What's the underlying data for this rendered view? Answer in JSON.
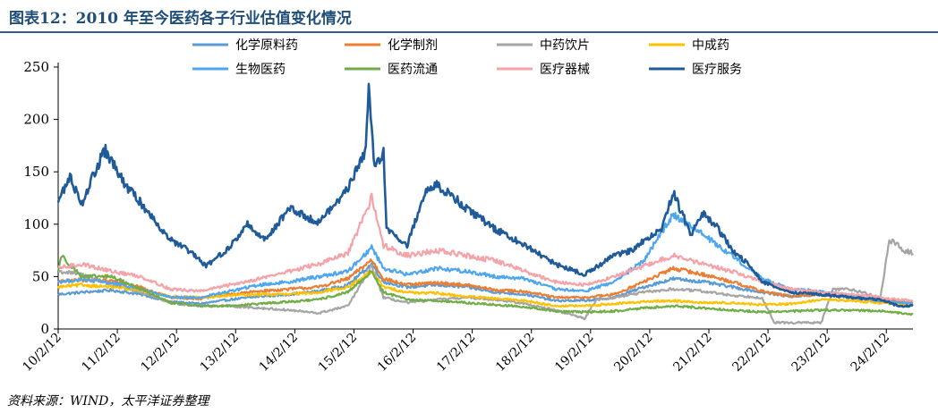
{
  "title": "图表12：2010 年至今医药各子行业估值变化情况",
  "source": "资料来源：WIND，太平洋证券整理",
  "chart_data": {
    "type": "line",
    "title": "图表12：2010 年至今医药各子行业估值变化情况",
    "xlabel": "",
    "ylabel": "",
    "ylim": [
      0,
      250
    ],
    "yticks": [
      0,
      50,
      100,
      150,
      200,
      250
    ],
    "x_tick_labels": [
      "10/2/12",
      "11/2/12",
      "12/2/12",
      "13/2/12",
      "14/2/12",
      "15/2/12",
      "16/2/12",
      "17/2/12",
      "18/2/12",
      "19/2/12",
      "20/2/12",
      "21/2/12",
      "22/2/12",
      "23/2/12",
      "24/2/12"
    ],
    "x_start": 2010.1,
    "x_end": 2024.55,
    "grid": false,
    "legend_position": "top",
    "series": [
      {
        "name": "化学原料药",
        "color": "#5b9bd5",
        "points": [
          [
            2010.1,
            33
          ],
          [
            2010.5,
            35
          ],
          [
            2011.0,
            37
          ],
          [
            2011.5,
            33
          ],
          [
            2012.0,
            26
          ],
          [
            2012.5,
            24
          ],
          [
            2013.0,
            28
          ],
          [
            2013.5,
            31
          ],
          [
            2014.0,
            33
          ],
          [
            2014.5,
            36
          ],
          [
            2015.0,
            42
          ],
          [
            2015.4,
            62
          ],
          [
            2015.6,
            45
          ],
          [
            2016.0,
            40
          ],
          [
            2016.5,
            42
          ],
          [
            2017.0,
            40
          ],
          [
            2017.5,
            35
          ],
          [
            2018.0,
            33
          ],
          [
            2018.5,
            27
          ],
          [
            2019.0,
            27
          ],
          [
            2019.5,
            30
          ],
          [
            2020.0,
            40
          ],
          [
            2020.5,
            48
          ],
          [
            2021.0,
            45
          ],
          [
            2021.5,
            40
          ],
          [
            2022.0,
            35
          ],
          [
            2022.5,
            31
          ],
          [
            2023.0,
            33
          ],
          [
            2023.5,
            30
          ],
          [
            2024.0,
            26
          ],
          [
            2024.55,
            23
          ]
        ]
      },
      {
        "name": "化学制剂",
        "color": "#ed7d31",
        "points": [
          [
            2010.1,
            45
          ],
          [
            2010.5,
            47
          ],
          [
            2011.0,
            46
          ],
          [
            2011.5,
            40
          ],
          [
            2012.0,
            30
          ],
          [
            2012.5,
            29
          ],
          [
            2013.0,
            33
          ],
          [
            2013.5,
            36
          ],
          [
            2014.0,
            38
          ],
          [
            2014.5,
            40
          ],
          [
            2015.0,
            48
          ],
          [
            2015.4,
            66
          ],
          [
            2015.6,
            48
          ],
          [
            2016.0,
            42
          ],
          [
            2016.5,
            44
          ],
          [
            2017.0,
            42
          ],
          [
            2017.5,
            37
          ],
          [
            2018.0,
            36
          ],
          [
            2018.5,
            30
          ],
          [
            2019.0,
            30
          ],
          [
            2019.5,
            33
          ],
          [
            2020.0,
            45
          ],
          [
            2020.5,
            58
          ],
          [
            2021.0,
            52
          ],
          [
            2021.5,
            45
          ],
          [
            2022.0,
            36
          ],
          [
            2022.5,
            31
          ],
          [
            2023.0,
            33
          ],
          [
            2023.5,
            31
          ],
          [
            2024.0,
            28
          ],
          [
            2024.55,
            25
          ]
        ]
      },
      {
        "name": "中药饮片",
        "color": "#a5a5a5",
        "points": [
          [
            2010.1,
            55
          ],
          [
            2010.5,
            52
          ],
          [
            2011.0,
            42
          ],
          [
            2011.5,
            35
          ],
          [
            2012.0,
            25
          ],
          [
            2012.5,
            22
          ],
          [
            2013.0,
            22
          ],
          [
            2013.5,
            20
          ],
          [
            2014.0,
            18
          ],
          [
            2014.5,
            15
          ],
          [
            2015.0,
            22
          ],
          [
            2015.4,
            60
          ],
          [
            2015.6,
            30
          ],
          [
            2016.0,
            25
          ],
          [
            2016.5,
            28
          ],
          [
            2017.0,
            30
          ],
          [
            2017.5,
            28
          ],
          [
            2018.0,
            24
          ],
          [
            2018.5,
            18
          ],
          [
            2019.0,
            10
          ],
          [
            2019.2,
            28
          ],
          [
            2019.5,
            30
          ],
          [
            2020.0,
            35
          ],
          [
            2020.5,
            38
          ],
          [
            2021.0,
            36
          ],
          [
            2021.5,
            32
          ],
          [
            2022.0,
            30
          ],
          [
            2022.2,
            6
          ],
          [
            2022.5,
            6
          ],
          [
            2023.0,
            6
          ],
          [
            2023.2,
            38
          ],
          [
            2023.5,
            38
          ],
          [
            2024.0,
            30
          ],
          [
            2024.15,
            85
          ],
          [
            2024.4,
            75
          ],
          [
            2024.55,
            72
          ]
        ]
      },
      {
        "name": "中成药",
        "color": "#ffc000",
        "points": [
          [
            2010.1,
            40
          ],
          [
            2010.5,
            42
          ],
          [
            2011.0,
            40
          ],
          [
            2011.5,
            37
          ],
          [
            2012.0,
            31
          ],
          [
            2012.5,
            30
          ],
          [
            2013.0,
            32
          ],
          [
            2013.5,
            33
          ],
          [
            2014.0,
            33
          ],
          [
            2014.5,
            35
          ],
          [
            2015.0,
            40
          ],
          [
            2015.4,
            55
          ],
          [
            2015.6,
            40
          ],
          [
            2016.0,
            35
          ],
          [
            2016.5,
            34
          ],
          [
            2017.0,
            31
          ],
          [
            2017.5,
            29
          ],
          [
            2018.0,
            27
          ],
          [
            2018.5,
            22
          ],
          [
            2019.0,
            22
          ],
          [
            2019.5,
            24
          ],
          [
            2020.0,
            26
          ],
          [
            2020.5,
            27
          ],
          [
            2021.0,
            25
          ],
          [
            2021.5,
            25
          ],
          [
            2022.0,
            23
          ],
          [
            2022.5,
            24
          ],
          [
            2023.0,
            28
          ],
          [
            2023.5,
            27
          ],
          [
            2024.0,
            25
          ],
          [
            2024.55,
            22
          ]
        ]
      },
      {
        "name": "生物医药",
        "color": "#4ea6ef",
        "points": [
          [
            2010.1,
            45
          ],
          [
            2010.5,
            47
          ],
          [
            2011.0,
            44
          ],
          [
            2011.5,
            38
          ],
          [
            2012.0,
            30
          ],
          [
            2012.5,
            30
          ],
          [
            2013.0,
            36
          ],
          [
            2013.5,
            42
          ],
          [
            2014.0,
            45
          ],
          [
            2014.5,
            50
          ],
          [
            2015.0,
            55
          ],
          [
            2015.4,
            78
          ],
          [
            2015.6,
            58
          ],
          [
            2016.0,
            52
          ],
          [
            2016.5,
            58
          ],
          [
            2017.0,
            55
          ],
          [
            2017.5,
            50
          ],
          [
            2018.0,
            48
          ],
          [
            2018.5,
            38
          ],
          [
            2019.0,
            36
          ],
          [
            2019.5,
            45
          ],
          [
            2020.0,
            65
          ],
          [
            2020.5,
            110
          ],
          [
            2021.0,
            90
          ],
          [
            2021.5,
            70
          ],
          [
            2022.0,
            48
          ],
          [
            2022.5,
            38
          ],
          [
            2023.0,
            36
          ],
          [
            2023.5,
            32
          ],
          [
            2024.0,
            27
          ],
          [
            2024.55,
            24
          ]
        ]
      },
      {
        "name": "医药流通",
        "color": "#70ad47",
        "points": [
          [
            2010.1,
            55
          ],
          [
            2010.15,
            70
          ],
          [
            2010.5,
            50
          ],
          [
            2011.0,
            50
          ],
          [
            2011.5,
            38
          ],
          [
            2012.0,
            25
          ],
          [
            2012.5,
            22
          ],
          [
            2013.0,
            22
          ],
          [
            2013.5,
            24
          ],
          [
            2014.0,
            26
          ],
          [
            2014.5,
            28
          ],
          [
            2015.0,
            35
          ],
          [
            2015.4,
            55
          ],
          [
            2015.6,
            35
          ],
          [
            2016.0,
            28
          ],
          [
            2016.5,
            27
          ],
          [
            2017.0,
            25
          ],
          [
            2017.5,
            23
          ],
          [
            2018.0,
            21
          ],
          [
            2018.5,
            17
          ],
          [
            2019.0,
            16
          ],
          [
            2019.5,
            17
          ],
          [
            2020.0,
            20
          ],
          [
            2020.5,
            22
          ],
          [
            2021.0,
            20
          ],
          [
            2021.5,
            18
          ],
          [
            2022.0,
            16
          ],
          [
            2022.5,
            17
          ],
          [
            2023.0,
            18
          ],
          [
            2023.5,
            18
          ],
          [
            2024.0,
            17
          ],
          [
            2024.55,
            14
          ]
        ]
      },
      {
        "name": "医疗器械",
        "color": "#f4a3a8",
        "points": [
          [
            2010.1,
            58
          ],
          [
            2010.5,
            62
          ],
          [
            2011.0,
            55
          ],
          [
            2011.5,
            50
          ],
          [
            2012.0,
            38
          ],
          [
            2012.5,
            36
          ],
          [
            2013.0,
            42
          ],
          [
            2013.5,
            48
          ],
          [
            2014.0,
            55
          ],
          [
            2014.5,
            62
          ],
          [
            2015.0,
            72
          ],
          [
            2015.4,
            125
          ],
          [
            2015.6,
            80
          ],
          [
            2016.0,
            70
          ],
          [
            2016.5,
            75
          ],
          [
            2017.0,
            70
          ],
          [
            2017.5,
            65
          ],
          [
            2018.0,
            55
          ],
          [
            2018.5,
            45
          ],
          [
            2019.0,
            42
          ],
          [
            2019.5,
            50
          ],
          [
            2020.0,
            60
          ],
          [
            2020.5,
            70
          ],
          [
            2021.0,
            62
          ],
          [
            2021.5,
            55
          ],
          [
            2022.0,
            45
          ],
          [
            2022.5,
            38
          ],
          [
            2023.0,
            35
          ],
          [
            2023.5,
            33
          ],
          [
            2024.0,
            30
          ],
          [
            2024.55,
            27
          ]
        ]
      },
      {
        "name": "医疗服务",
        "color": "#1f5b99",
        "points": [
          [
            2010.1,
            122
          ],
          [
            2010.3,
            145
          ],
          [
            2010.5,
            120
          ],
          [
            2010.8,
            160
          ],
          [
            2010.9,
            170
          ],
          [
            2011.2,
            140
          ],
          [
            2011.5,
            120
          ],
          [
            2012.0,
            85
          ],
          [
            2012.3,
            75
          ],
          [
            2012.6,
            60
          ],
          [
            2013.0,
            78
          ],
          [
            2013.3,
            100
          ],
          [
            2013.6,
            85
          ],
          [
            2014.0,
            115
          ],
          [
            2014.5,
            102
          ],
          [
            2014.8,
            120
          ],
          [
            2015.0,
            135
          ],
          [
            2015.3,
            170
          ],
          [
            2015.35,
            230
          ],
          [
            2015.45,
            155
          ],
          [
            2015.6,
            170
          ],
          [
            2015.65,
            95
          ],
          [
            2016.0,
            80
          ],
          [
            2016.3,
            130
          ],
          [
            2016.5,
            138
          ],
          [
            2016.8,
            125
          ],
          [
            2017.0,
            115
          ],
          [
            2017.5,
            95
          ],
          [
            2018.0,
            80
          ],
          [
            2018.5,
            62
          ],
          [
            2019.0,
            52
          ],
          [
            2019.5,
            70
          ],
          [
            2019.8,
            75
          ],
          [
            2020.0,
            85
          ],
          [
            2020.3,
            95
          ],
          [
            2020.5,
            130
          ],
          [
            2020.8,
            90
          ],
          [
            2021.0,
            110
          ],
          [
            2021.2,
            100
          ],
          [
            2021.5,
            75
          ],
          [
            2021.8,
            60
          ],
          [
            2022.0,
            45
          ],
          [
            2022.5,
            35
          ],
          [
            2023.0,
            33
          ],
          [
            2023.5,
            30
          ],
          [
            2024.0,
            28
          ],
          [
            2024.3,
            22
          ],
          [
            2024.55,
            22
          ]
        ]
      }
    ]
  }
}
